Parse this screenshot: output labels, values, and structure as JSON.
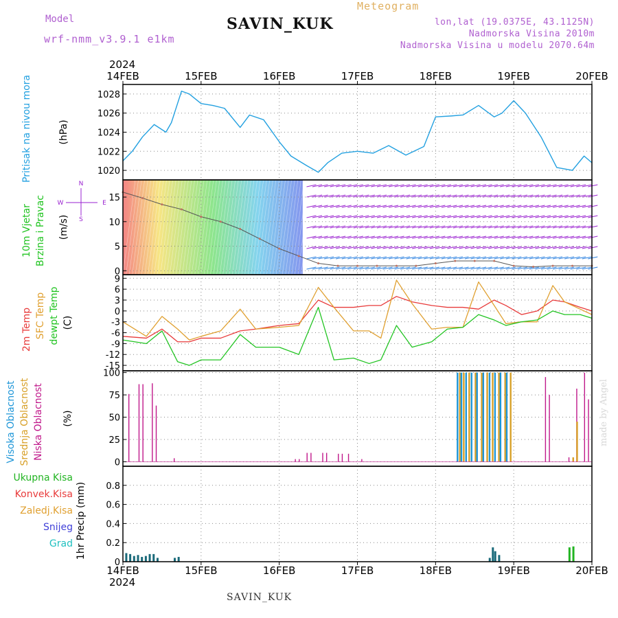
{
  "header": {
    "station": "SAVIN_KUK",
    "model_label": "Model",
    "model_name": "wrf-nmm_v3.9.1 e1km",
    "meteogram_label": "Meteogram",
    "info": [
      "lon,lat (19.0375E, 43.1125N)",
      "Nadmorska Visina 2010m",
      "Nadmorska Visina u modelu 2070.64m"
    ]
  },
  "footer": {
    "station": "SAVIN_KUK",
    "watermark": "made by Angel"
  },
  "time_axis": {
    "year": "2024",
    "labels": [
      "14FEB",
      "15FEB",
      "16FEB",
      "17FEB",
      "18FEB",
      "19FEB",
      "20FEB"
    ]
  },
  "colors": {
    "pressure": "#22a0e0",
    "t2m": "#e83a3a",
    "sfc": "#e0a030",
    "dewpt": "#22c422",
    "cloud_high": "#1e96d8",
    "cloud_mid": "#d8a028",
    "cloud_low": "#c0188a",
    "precip_total": "#22b422",
    "precip_conv": "#e83a3a",
    "snow": "#4040d8",
    "hail": "#20c0c0",
    "wind_purple": "#9a22d0"
  },
  "chart_data": [
    {
      "type": "line",
      "panel": "pressure",
      "ylabel_lines": [
        "Pritisak na nivou mora"
      ],
      "unit": "(hPa)",
      "ylim": [
        1019,
        1029
      ],
      "yticks": [
        1020,
        1022,
        1024,
        1026,
        1028
      ],
      "x_days": [
        0,
        0.12,
        0.25,
        0.4,
        0.55,
        0.62,
        0.75,
        0.85,
        1.0,
        1.15,
        1.3,
        1.5,
        1.62,
        1.8,
        2.0,
        2.15,
        2.35,
        2.5,
        2.62,
        2.8,
        3.0,
        3.2,
        3.4,
        3.62,
        3.85,
        4.0,
        4.2,
        4.35,
        4.55,
        4.75,
        4.85,
        5.0,
        5.15,
        5.35,
        5.55,
        5.75,
        5.9,
        6.0
      ],
      "series": [
        {
          "values": [
            1021.0,
            1022.0,
            1023.5,
            1024.8,
            1024.0,
            1025.0,
            1028.3,
            1028.0,
            1027.0,
            1026.8,
            1026.5,
            1024.5,
            1025.8,
            1025.3,
            1023.0,
            1021.5,
            1020.5,
            1019.8,
            1020.8,
            1021.8,
            1022.0,
            1021.8,
            1022.6,
            1021.6,
            1022.5,
            1025.6,
            1025.7,
            1025.8,
            1026.8,
            1025.6,
            1026.0,
            1027.3,
            1026.0,
            1023.5,
            1020.3,
            1020.0,
            1021.5,
            1020.8
          ]
        }
      ]
    },
    {
      "type": "scatter",
      "panel": "wind",
      "ylabel_lines": [
        "10m Vjetar",
        "Brzina i Pravac"
      ],
      "unit": "(m/s)",
      "compass": "N, S, E, W",
      "ylim": [
        -0.8,
        18.5
      ],
      "yticks": [
        0,
        5,
        10,
        15
      ],
      "x_days": [
        0,
        0.25,
        0.5,
        0.75,
        1.0,
        1.25,
        1.5,
        1.75,
        2.0,
        2.25,
        2.5,
        2.75,
        3.0,
        3.25,
        3.5,
        3.75,
        4.0,
        4.25,
        4.5,
        4.75,
        5.0,
        5.25,
        5.5,
        5.75,
        6.0
      ],
      "series": [
        {
          "name": "wind speed",
          "values": [
            16.0,
            14.8,
            13.5,
            12.5,
            11.0,
            10.0,
            8.5,
            6.5,
            4.5,
            3.0,
            1.5,
            1.0,
            1.0,
            1.0,
            1.0,
            1.0,
            1.5,
            2.0,
            2.0,
            2.0,
            1.0,
            0.8,
            1.0,
            1.0,
            1.0
          ]
        }
      ]
    },
    {
      "type": "line",
      "panel": "temperature",
      "ylabel_lines": [
        "2m Temp",
        "SFC Temp",
        "dewpt Temp"
      ],
      "unit": "(C)",
      "ylim": [
        -16.5,
        10
      ],
      "yticks": [
        -15,
        -12,
        -9,
        -6,
        -3,
        0,
        3,
        6,
        9
      ],
      "x_days": [
        0,
        0.3,
        0.5,
        0.7,
        0.85,
        1.0,
        1.25,
        1.5,
        1.7,
        2.0,
        2.25,
        2.5,
        2.7,
        2.95,
        3.15,
        3.3,
        3.5,
        3.7,
        3.95,
        4.15,
        4.35,
        4.55,
        4.75,
        4.9,
        5.1,
        5.3,
        5.5,
        5.65,
        5.85,
        6.0
      ],
      "series": [
        {
          "name": "2m Temp",
          "values": [
            -7.0,
            -7.5,
            -5.0,
            -8.5,
            -8.5,
            -7.5,
            -7.5,
            -5.5,
            -5.0,
            -4.0,
            -3.5,
            3.0,
            1.0,
            1.0,
            1.5,
            1.5,
            4.0,
            2.5,
            1.5,
            1.0,
            1.0,
            0.5,
            3.0,
            1.5,
            -1.0,
            0.0,
            3.0,
            2.5,
            1.0,
            0.0
          ]
        },
        {
          "name": "SFC Temp",
          "values": [
            -3.0,
            -7.0,
            -1.5,
            -5.0,
            -8.0,
            -7.0,
            -5.5,
            0.5,
            -5.0,
            -4.5,
            -4.0,
            6.5,
            1.0,
            -5.5,
            -5.5,
            -7.5,
            8.5,
            2.0,
            -5.0,
            -4.5,
            -4.5,
            8.0,
            1.5,
            -3.5,
            -3.0,
            -3.0,
            7.0,
            2.5,
            0.5,
            -1.0
          ]
        },
        {
          "name": "dewpt Temp",
          "values": [
            -8.0,
            -9.0,
            -5.5,
            -14.0,
            -15.0,
            -13.5,
            -13.5,
            -6.5,
            -10.0,
            -10.0,
            -12.0,
            1.0,
            -13.5,
            -13.0,
            -14.5,
            -13.5,
            -4.0,
            -10.0,
            -8.5,
            -5.0,
            -4.5,
            -1.0,
            -2.5,
            -4.0,
            -3.0,
            -2.5,
            0.0,
            -1.0,
            -1.0,
            -2.0
          ]
        }
      ]
    },
    {
      "type": "bar",
      "panel": "clouds",
      "ylabel_lines": [
        "Visoka Oblacnost",
        "Srednja Oblacnost",
        "Niska Oblacnost"
      ],
      "unit": "(%)",
      "ylim": [
        -5,
        102
      ],
      "yticks": [
        0,
        25,
        50,
        75,
        100
      ],
      "series": [
        {
          "name": "Niska Oblacnost",
          "x_days": [
            0.07,
            0.2,
            0.25,
            0.37,
            0.42,
            0.65,
            2.2,
            2.25,
            2.35,
            2.4,
            2.55,
            2.6,
            2.75,
            2.8,
            2.88,
            3.05,
            5.4,
            5.45,
            5.7,
            5.8,
            5.9,
            5.95
          ],
          "values": [
            76,
            87,
            87,
            88,
            63,
            4,
            3,
            3,
            10,
            10,
            10,
            10,
            9,
            9,
            9,
            3,
            95,
            75,
            5,
            82,
            100,
            70
          ]
        },
        {
          "name": "Srednja Oblacnost",
          "x_days": [
            4.3,
            4.35,
            4.42,
            4.5,
            4.58,
            4.65,
            4.72,
            4.8,
            4.88,
            4.95,
            5.75,
            5.8
          ],
          "values": [
            100,
            100,
            100,
            100,
            100,
            100,
            100,
            100,
            100,
            100,
            5,
            45
          ]
        },
        {
          "name": "Visoka Oblacnost",
          "x_days": [
            4.27,
            4.32,
            4.38,
            4.45,
            4.52,
            4.6,
            4.68,
            4.75,
            4.82,
            4.9
          ],
          "values": [
            100,
            100,
            100,
            100,
            100,
            100,
            100,
            100,
            100,
            100
          ]
        }
      ]
    },
    {
      "type": "bar",
      "panel": "precipitation",
      "ylabel_lines": [
        "1hr Precip (mm)"
      ],
      "legend": [
        "Ukupna Kisa",
        "Konvek.Kisa",
        "Zaledj.Kisa",
        "Snijeg",
        "Grad"
      ],
      "ylim": [
        0,
        1.0
      ],
      "yticks": [
        0,
        0.2,
        0.4,
        0.6,
        0.8
      ],
      "series": [
        {
          "name": "Snijeg",
          "x_days": [
            0.03,
            0.08,
            0.13,
            0.18,
            0.23,
            0.28,
            0.33,
            0.38,
            0.43,
            0.65,
            0.7,
            4.68,
            4.72,
            4.75,
            4.8
          ],
          "values": [
            0.09,
            0.08,
            0.06,
            0.07,
            0.05,
            0.06,
            0.08,
            0.08,
            0.04,
            0.04,
            0.05,
            0.04,
            0.15,
            0.11,
            0.07
          ]
        },
        {
          "name": "Ukupna Kisa",
          "x_days": [
            5.7,
            5.75
          ],
          "values": [
            0.15,
            0.16
          ]
        }
      ]
    }
  ]
}
